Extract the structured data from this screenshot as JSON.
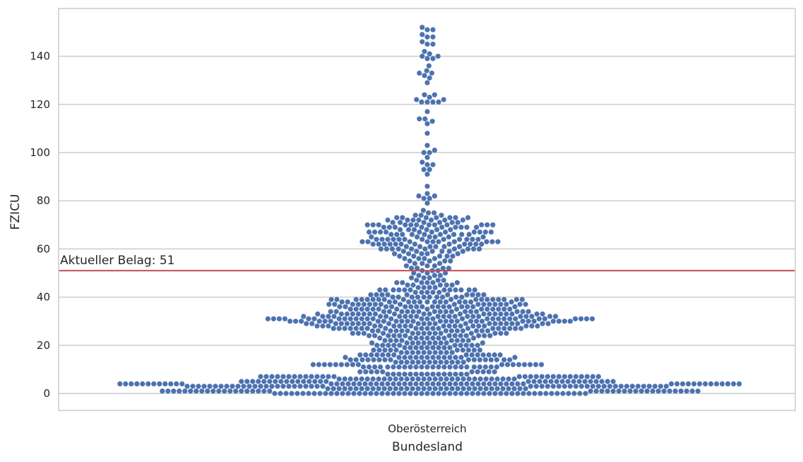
{
  "chart_data": {
    "type": "scatter",
    "subtype": "swarm",
    "title": "",
    "xlabel": "Bundesland",
    "ylabel": "FZICU",
    "categories": [
      "Oberösterreich"
    ],
    "ylim": [
      -7,
      159
    ],
    "yticks": [
      0,
      20,
      40,
      60,
      80,
      100,
      120,
      140
    ],
    "grid": "horizontal",
    "point_color": "#4c72b0",
    "reference_line": {
      "value": 51,
      "label": "Aktueller Belag: 51",
      "color": "#c44e52"
    },
    "values": [
      0,
      0,
      0,
      0,
      0,
      0,
      0,
      0,
      0,
      0,
      0,
      0,
      0,
      0,
      0,
      0,
      0,
      0,
      0,
      0,
      0,
      0,
      0,
      0,
      0,
      0,
      0,
      0,
      0,
      0,
      0,
      0,
      0,
      0,
      0,
      0,
      0,
      0,
      0,
      0,
      0,
      0,
      0,
      0,
      0,
      0,
      0,
      0,
      0,
      0,
      0,
      0,
      0,
      0,
      0,
      0,
      1,
      1,
      1,
      1,
      1,
      1,
      1,
      1,
      1,
      1,
      1,
      1,
      1,
      1,
      1,
      1,
      1,
      1,
      1,
      1,
      1,
      1,
      1,
      1,
      1,
      1,
      1,
      1,
      1,
      1,
      1,
      1,
      1,
      1,
      1,
      1,
      1,
      1,
      1,
      1,
      2,
      2,
      2,
      2,
      2,
      2,
      2,
      2,
      2,
      2,
      2,
      2,
      2,
      2,
      2,
      2,
      2,
      2,
      2,
      2,
      2,
      2,
      2,
      2,
      2,
      2,
      2,
      2,
      2,
      2,
      2,
      2,
      2,
      2,
      2,
      2,
      3,
      3,
      3,
      3,
      3,
      3,
      3,
      3,
      3,
      3,
      3,
      3,
      3,
      3,
      3,
      3,
      3,
      3,
      3,
      3,
      3,
      3,
      3,
      3,
      3,
      3,
      3,
      3,
      3,
      3,
      3,
      3,
      3,
      3,
      3,
      3,
      3,
      3,
      3,
      3,
      3,
      3,
      3,
      3,
      3,
      3,
      3,
      3,
      3,
      3,
      4,
      4,
      4,
      4,
      4,
      4,
      4,
      4,
      4,
      4,
      4,
      4,
      4,
      4,
      4,
      4,
      4,
      4,
      4,
      4,
      4,
      4,
      4,
      4,
      4,
      4,
      4,
      4,
      4,
      4,
      4,
      4,
      4,
      4,
      4,
      4,
      4,
      4,
      4,
      4,
      4,
      4,
      4,
      4,
      4,
      4,
      4,
      4,
      4,
      4,
      4,
      4,
      4,
      4,
      4,
      4,
      4,
      4,
      4,
      4,
      5,
      5,
      5,
      5,
      5,
      5,
      5,
      5,
      5,
      5,
      5,
      5,
      5,
      5,
      5,
      5,
      5,
      5,
      5,
      5,
      5,
      5,
      5,
      5,
      5,
      5,
      5,
      5,
      5,
      5,
      5,
      5,
      6,
      6,
      6,
      6,
      6,
      6,
      6,
      6,
      6,
      6,
      6,
      6,
      6,
      6,
      6,
      6,
      6,
      6,
      6,
      6,
      6,
      6,
      6,
      6,
      6,
      6,
      6,
      6,
      6,
      6,
      6,
      6,
      7,
      7,
      7,
      7,
      7,
      7,
      7,
      7,
      7,
      7,
      7,
      7,
      7,
      7,
      7,
      7,
      7,
      7,
      7,
      7,
      7,
      7,
      7,
      7,
      7,
      7,
      7,
      7,
      7,
      8,
      8,
      8,
      8,
      8,
      8,
      8,
      8,
      8,
      8,
      8,
      8,
      8,
      8,
      8,
      9,
      9,
      9,
      9,
      9,
      9,
      9,
      9,
      9,
      9,
      11,
      11,
      11,
      11,
      11,
      11,
      11,
      11,
      11,
      11,
      11,
      11,
      11,
      11,
      11,
      11,
      11,
      11,
      11,
      11,
      11,
      11,
      11,
      11,
      12,
      12,
      12,
      12,
      12,
      12,
      12,
      12,
      12,
      12,
      12,
      12,
      12,
      12,
      12,
      12,
      12,
      13,
      13,
      13,
      13,
      13,
      13,
      13,
      13,
      13,
      13,
      13,
      13,
      13,
      14,
      14,
      14,
      14,
      14,
      14,
      14,
      14,
      14,
      14,
      14,
      14,
      14,
      14,
      14,
      14,
      15,
      15,
      15,
      15,
      15,
      15,
      15,
      15,
      15,
      15,
      15,
      15,
      15,
      15,
      16,
      16,
      16,
      16,
      16,
      16,
      16,
      16,
      16,
      16,
      16,
      16,
      16,
      16,
      17,
      17,
      17,
      17,
      17,
      17,
      17,
      17,
      17,
      17,
      18,
      18,
      18,
      18,
      18,
      18,
      18,
      18,
      18,
      18,
      19,
      19,
      19,
      19,
      19,
      19,
      19,
      19,
      19,
      20,
      20,
      20,
      20,
      20,
      20,
      20,
      20,
      20,
      20,
      21,
      21,
      21,
      21,
      21,
      21,
      21,
      21,
      21,
      21,
      22,
      22,
      22,
      22,
      22,
      22,
      22,
      22,
      23,
      23,
      23,
      23,
      23,
      23,
      23,
      23,
      23,
      24,
      24,
      24,
      24,
      24,
      24,
      24,
      24,
      24,
      24,
      24,
      24,
      24,
      25,
      25,
      25,
      25,
      25,
      25,
      25,
      25,
      25,
      25,
      25,
      25,
      25,
      25,
      26,
      26,
      26,
      26,
      26,
      26,
      26,
      26,
      26,
      26,
      26,
      26,
      26,
      27,
      27,
      27,
      27,
      27,
      27,
      27,
      27,
      27,
      27,
      27,
      27,
      27,
      27,
      27,
      27,
      27,
      27,
      27,
      27,
      28,
      28,
      28,
      28,
      28,
      28,
      28,
      28,
      28,
      28,
      28,
      28,
      28,
      28,
      28,
      28,
      28,
      28,
      28,
      29,
      29,
      29,
      29,
      29,
      29,
      29,
      29,
      29,
      29,
      29,
      29,
      29,
      29,
      29,
      29,
      29,
      29,
      29,
      29,
      29,
      29,
      29,
      30,
      30,
      30,
      30,
      30,
      30,
      30,
      30,
      30,
      30,
      30,
      30,
      30,
      30,
      30,
      30,
      30,
      30,
      30,
      30,
      30,
      30,
      30,
      30,
      30,
      30,
      31,
      31,
      31,
      31,
      31,
      31,
      31,
      31,
      31,
      31,
      31,
      31,
      31,
      31,
      31,
      31,
      31,
      31,
      31,
      31,
      31,
      31,
      31,
      31,
      31,
      31,
      31,
      31,
      31,
      31,
      32,
      32,
      32,
      32,
      32,
      32,
      32,
      32,
      32,
      32,
      32,
      32,
      32,
      32,
      32,
      32,
      32,
      32,
      32,
      32,
      32,
      32,
      33,
      33,
      33,
      33,
      33,
      33,
      33,
      33,
      33,
      33,
      33,
      33,
      33,
      33,
      33,
      33,
      33,
      33,
      33,
      33,
      34,
      34,
      34,
      34,
      34,
      34,
      34,
      34,
      34,
      34,
      34,
      34,
      34,
      34,
      34,
      34,
      34,
      34,
      35,
      35,
      35,
      35,
      35,
      35,
      35,
      35,
      35,
      35,
      35,
      35,
      35,
      35,
      35,
      36,
      36,
      36,
      36,
      36,
      36,
      36,
      36,
      36,
      36,
      36,
      36,
      36,
      36,
      36,
      36,
      37,
      37,
      37,
      37,
      37,
      37,
      37,
      37,
      37,
      37,
      37,
      37,
      37,
      37,
      37,
      37,
      37,
      37,
      38,
      38,
      38,
      38,
      38,
      38,
      38,
      38,
      38,
      38,
      38,
      38,
      38,
      38,
      38,
      39,
      39,
      39,
      39,
      39,
      39,
      39,
      39,
      39,
      39,
      39,
      39,
      39,
      39,
      39,
      39,
      39,
      39,
      40,
      40,
      40,
      40,
      40,
      40,
      40,
      40,
      40,
      40,
      41,
      41,
      41,
      41,
      41,
      41,
      41,
      41,
      41,
      41,
      42,
      42,
      42,
      42,
      42,
      43,
      43,
      43,
      43,
      43,
      43,
      43,
      43,
      43,
      43,
      43,
      43,
      44,
      44,
      44,
      44,
      45,
      45,
      45,
      45,
      45,
      46,
      46,
      46,
      46,
      46,
      46,
      47,
      47,
      47,
      48,
      48,
      48,
      49,
      49,
      49,
      50,
      50,
      50,
      51,
      51,
      51,
      52,
      52,
      52,
      52,
      53,
      53,
      53,
      54,
      54,
      54,
      55,
      55,
      55,
      55,
      56,
      56,
      56,
      56,
      57,
      57,
      57,
      57,
      57,
      58,
      58,
      58,
      58,
      58,
      59,
      59,
      59,
      59,
      59,
      59,
      60,
      60,
      60,
      60,
      60,
      60,
      60,
      60,
      60,
      60,
      61,
      61,
      61,
      61,
      61,
      61,
      62,
      62,
      62,
      62,
      62,
      62,
      62,
      62,
      62,
      62,
      62,
      62,
      63,
      63,
      63,
      63,
      63,
      63,
      63,
      63,
      63,
      63,
      64,
      64,
      64,
      64,
      64,
      64,
      64,
      64,
      64,
      64,
      64,
      64,
      65,
      65,
      65,
      65,
      65,
      65,
      66,
      66,
      66,
      66,
      66,
      66,
      66,
      66,
      66,
      67,
      67,
      67,
      67,
      67,
      67,
      67,
      67,
      67,
      67,
      67,
      68,
      68,
      68,
      68,
      68,
      68,
      69,
      69,
      69,
      69,
      69,
      69,
      69,
      69,
      69,
      70,
      70,
      70,
      70,
      70,
      70,
      70,
      70,
      70,
      70,
      70,
      70,
      71,
      71,
      71,
      71,
      71,
      71,
      72,
      72,
      72,
      72,
      72,
      72,
      72,
      73,
      73,
      73,
      73,
      73,
      73,
      73,
      74,
      74,
      74,
      75,
      75,
      76,
      79,
      81,
      81,
      82,
      82,
      83,
      86,
      91,
      93,
      93,
      95,
      95,
      96,
      98,
      100,
      100,
      101,
      103,
      108,
      112,
      113,
      114,
      114,
      117,
      121,
      121,
      121,
      121,
      122,
      122,
      123,
      124,
      124,
      129,
      131,
      132,
      133,
      133,
      134,
      136,
      139,
      139,
      140,
      140,
      141,
      142,
      145,
      145,
      146,
      148,
      148,
      149,
      151,
      151,
      152
    ]
  }
}
